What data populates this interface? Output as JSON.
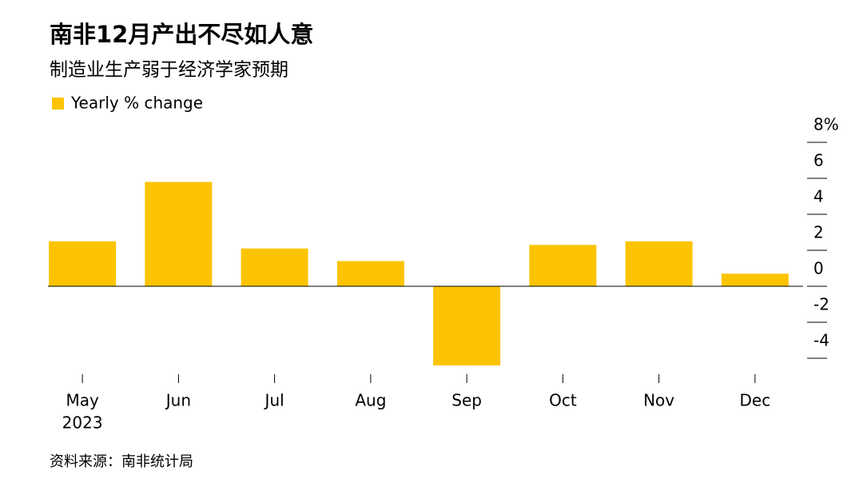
{
  "chart_data": {
    "type": "bar",
    "title": "南非12月产出不尽如人意",
    "subtitle": "制造业生产弱于经济学家预期",
    "legend": "Yearly % change",
    "source": "资料来源：南非统计局",
    "categories": [
      "May",
      "Jun",
      "Jul",
      "Aug",
      "Sep",
      "Oct",
      "Nov",
      "Dec"
    ],
    "x_year_label": "2023",
    "values": [
      2.5,
      5.8,
      2.1,
      1.4,
      -4.4,
      2.3,
      2.5,
      0.7
    ],
    "color": "#fcc400",
    "ylim": [
      -5,
      8
    ],
    "yticks": [
      {
        "value": 8,
        "label": "8%"
      },
      6,
      4,
      2,
      0,
      -2,
      -4
    ]
  }
}
